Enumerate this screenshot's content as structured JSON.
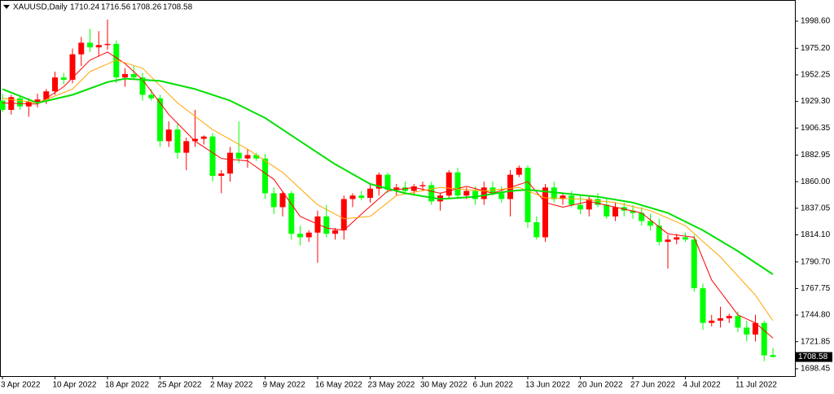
{
  "chart_data": {
    "type": "candlestick",
    "symbol": "XAUUSD,Daily",
    "up_color": "#ff0000",
    "down_color": "#00ff00",
    "candles": {
      "open": [
        1930,
        1922,
        1932,
        1925,
        1929,
        1931,
        1938,
        1950,
        1948,
        1970,
        1980,
        1976,
        1978,
        1979,
        1950,
        1953,
        1950,
        1935,
        1932,
        1895,
        1905,
        1885,
        1895,
        1897,
        1899,
        1865,
        1867,
        1885,
        1880,
        1883,
        1880,
        1850,
        1838,
        1850,
        1815,
        1812,
        1816,
        1830,
        1815,
        1818,
        1845,
        1848,
        1846,
        1854,
        1866,
        1853,
        1855,
        1852,
        1856,
        1857,
        1843,
        1848,
        1868,
        1848,
        1852,
        1845,
        1855,
        1850,
        1845,
        1866,
        1872,
        1825,
        1812,
        1855,
        1845,
        1848,
        1840,
        1836,
        1845,
        1840,
        1830,
        1838,
        1835,
        1833,
        1826,
        1822,
        1808,
        1810,
        1812,
        1810,
        1768,
        1738,
        1740,
        1742,
        1744,
        1734,
        1728,
        1738,
        1710.24
      ],
      "high": [
        1936,
        1935,
        1934,
        1932,
        1936,
        1940,
        1955,
        1954,
        1975,
        1985,
        1992,
        1990,
        2000,
        1982,
        1958,
        1960,
        1954,
        1940,
        1935,
        1912,
        1910,
        1898,
        1922,
        1900,
        1902,
        1870,
        1890,
        1912,
        1888,
        1885,
        1884,
        1855,
        1852,
        1852,
        1822,
        1818,
        1835,
        1840,
        1820,
        1848,
        1850,
        1852,
        1858,
        1868,
        1868,
        1858,
        1860,
        1858,
        1860,
        1860,
        1850,
        1870,
        1872,
        1855,
        1856,
        1860,
        1860,
        1856,
        1870,
        1874,
        1874,
        1830,
        1858,
        1860,
        1850,
        1852,
        1848,
        1848,
        1850,
        1845,
        1842,
        1842,
        1840,
        1838,
        1832,
        1828,
        1814,
        1815,
        1816,
        1814,
        1772,
        1745,
        1752,
        1746,
        1748,
        1740,
        1745,
        1740,
        1716.56
      ],
      "low": [
        1920,
        1918,
        1922,
        1916,
        1924,
        1927,
        1935,
        1944,
        1945,
        1960,
        1972,
        1968,
        1974,
        1945,
        1942,
        1948,
        1930,
        1930,
        1890,
        1890,
        1880,
        1870,
        1890,
        1892,
        1860,
        1850,
        1860,
        1876,
        1872,
        1878,
        1845,
        1832,
        1830,
        1810,
        1805,
        1808,
        1790,
        1812,
        1810,
        1810,
        1838,
        1844,
        1842,
        1848,
        1850,
        1848,
        1850,
        1848,
        1852,
        1840,
        1835,
        1845,
        1845,
        1845,
        1840,
        1840,
        1848,
        1842,
        1830,
        1864,
        1820,
        1810,
        1808,
        1842,
        1840,
        1838,
        1832,
        1830,
        1838,
        1828,
        1826,
        1830,
        1828,
        1822,
        1818,
        1805,
        1785,
        1806,
        1808,
        1765,
        1732,
        1735,
        1734,
        1738,
        1730,
        1722,
        1722,
        1705,
        1708.26
      ],
      "close": [
        1922,
        1933,
        1925,
        1929,
        1931,
        1938,
        1950,
        1948,
        1970,
        1980,
        1976,
        1978,
        1979,
        1950,
        1953,
        1950,
        1935,
        1932,
        1895,
        1905,
        1885,
        1895,
        1897,
        1899,
        1865,
        1867,
        1885,
        1880,
        1883,
        1880,
        1850,
        1838,
        1850,
        1815,
        1812,
        1816,
        1830,
        1815,
        1818,
        1845,
        1848,
        1846,
        1854,
        1866,
        1853,
        1855,
        1852,
        1856,
        1857,
        1843,
        1848,
        1868,
        1848,
        1852,
        1845,
        1855,
        1850,
        1845,
        1866,
        1872,
        1825,
        1812,
        1855,
        1845,
        1848,
        1840,
        1836,
        1845,
        1840,
        1830,
        1838,
        1835,
        1833,
        1826,
        1822,
        1808,
        1810,
        1812,
        1810,
        1768,
        1738,
        1740,
        1742,
        1744,
        1734,
        1728,
        1738,
        1710,
        1708.58
      ]
    },
    "series": [
      {
        "color": "#ff0000",
        "x": [
          0,
          4,
          7,
          10,
          12,
          14,
          16,
          19,
          22,
          25,
          28,
          31,
          34,
          37,
          39,
          41,
          44,
          47,
          50,
          53,
          56,
          58,
          60,
          62,
          64,
          67,
          70,
          73,
          76,
          79,
          81,
          84,
          86,
          88
        ],
        "values": [
          1928,
          1927,
          1942,
          1965,
          1972,
          1962,
          1948,
          1918,
          1895,
          1880,
          1878,
          1862,
          1830,
          1820,
          1818,
          1832,
          1852,
          1855,
          1850,
          1856,
          1850,
          1855,
          1860,
          1842,
          1838,
          1843,
          1838,
          1833,
          1815,
          1812,
          1775,
          1745,
          1738,
          1725
        ]
      },
      {
        "color": "#ffa500",
        "x": [
          0,
          4,
          8,
          10,
          13,
          16,
          20,
          24,
          28,
          32,
          36,
          39,
          42,
          45,
          50,
          55,
          59,
          62,
          66,
          70,
          74,
          78,
          82,
          86,
          88
        ],
        "values": [
          1932,
          1928,
          1940,
          1955,
          1965,
          1958,
          1928,
          1905,
          1888,
          1868,
          1840,
          1828,
          1830,
          1848,
          1855,
          1852,
          1855,
          1846,
          1845,
          1842,
          1835,
          1822,
          1795,
          1762,
          1740
        ]
      },
      {
        "color": "#00e000",
        "x": [
          0,
          4,
          8,
          12,
          14,
          18,
          22,
          26,
          30,
          34,
          38,
          42,
          46,
          50,
          54,
          58,
          60,
          64,
          68,
          72,
          76,
          80,
          84,
          88
        ],
        "values": [
          1940,
          1928,
          1935,
          1946,
          1949,
          1947,
          1940,
          1930,
          1915,
          1895,
          1875,
          1858,
          1850,
          1845,
          1847,
          1852,
          1853,
          1850,
          1847,
          1842,
          1833,
          1818,
          1800,
          1780
        ]
      }
    ],
    "xlim": [
      -0.28,
      90.51
    ],
    "xticks": [
      {
        "value": 0,
        "label": "3 Apr 2022"
      },
      {
        "value": 6,
        "label": "10 Apr 2022"
      },
      {
        "value": 12,
        "label": "18 Apr 2022"
      },
      {
        "value": 18,
        "label": "25 Apr 2022"
      },
      {
        "value": 24,
        "label": "2 May 2022"
      },
      {
        "value": 30,
        "label": "9 May 2022"
      },
      {
        "value": 36,
        "label": "16 May 2022"
      },
      {
        "value": 42,
        "label": "23 May 2022"
      },
      {
        "value": 48,
        "label": "30 May 2022"
      },
      {
        "value": 54,
        "label": "6 Jun 2022"
      },
      {
        "value": 60,
        "label": "13 Jun 2022"
      },
      {
        "value": 66,
        "label": "20 Jun 2022"
      },
      {
        "value": 72,
        "label": "27 Jun 2022"
      },
      {
        "value": 78,
        "label": "4 Jul 2022"
      },
      {
        "value": 84,
        "label": "11 Jul 2022"
      }
    ],
    "ylim": [
      1692.1,
      2016.9
    ],
    "yticks": [
      {
        "value": 1998.6,
        "label": "1998.60"
      },
      {
        "value": 1975.2,
        "label": "1975.20"
      },
      1952.25,
      {
        "value": 1929.3,
        "label": "1929.30"
      },
      1906.35,
      1882.95,
      {
        "value": 1860,
        "label": "1860.00"
      },
      1837.05,
      {
        "value": 1814.1,
        "label": "1814.10"
      },
      {
        "value": 1790.7,
        "label": "1790.70"
      },
      1767.75,
      {
        "value": 1744.8,
        "label": "1744.80"
      },
      1721.85,
      1698.45
    ]
  }
}
